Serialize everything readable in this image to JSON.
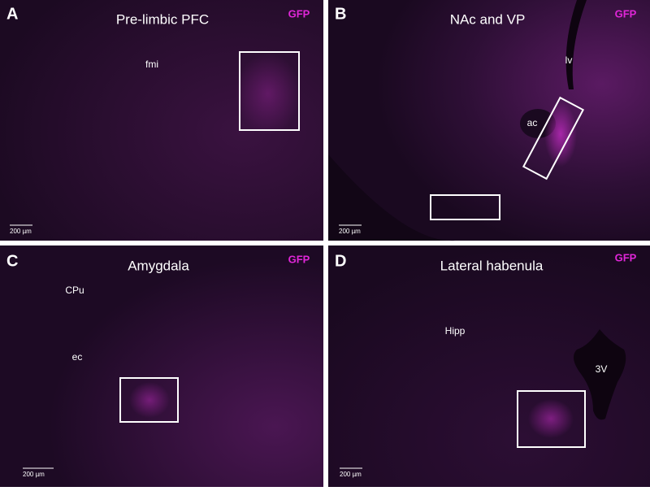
{
  "panels": [
    {
      "letter": "A",
      "title": "Pre-limbic PFC",
      "marker": "GFP",
      "labels": [
        "fmi"
      ],
      "scale_bar": "200 µm"
    },
    {
      "letter": "B",
      "title": "NAc and VP",
      "marker": "GFP",
      "labels": [
        "lv",
        "ac"
      ],
      "scale_bar": "200 µm"
    },
    {
      "letter": "C",
      "title": "Amygdala",
      "marker": "GFP",
      "labels": [
        "CPu",
        "ec"
      ],
      "scale_bar": "200 µm"
    },
    {
      "letter": "D",
      "title": "Lateral habenula",
      "marker": "GFP",
      "labels": [
        "Hipp",
        "3V"
      ],
      "scale_bar": "200 µm"
    }
  ]
}
